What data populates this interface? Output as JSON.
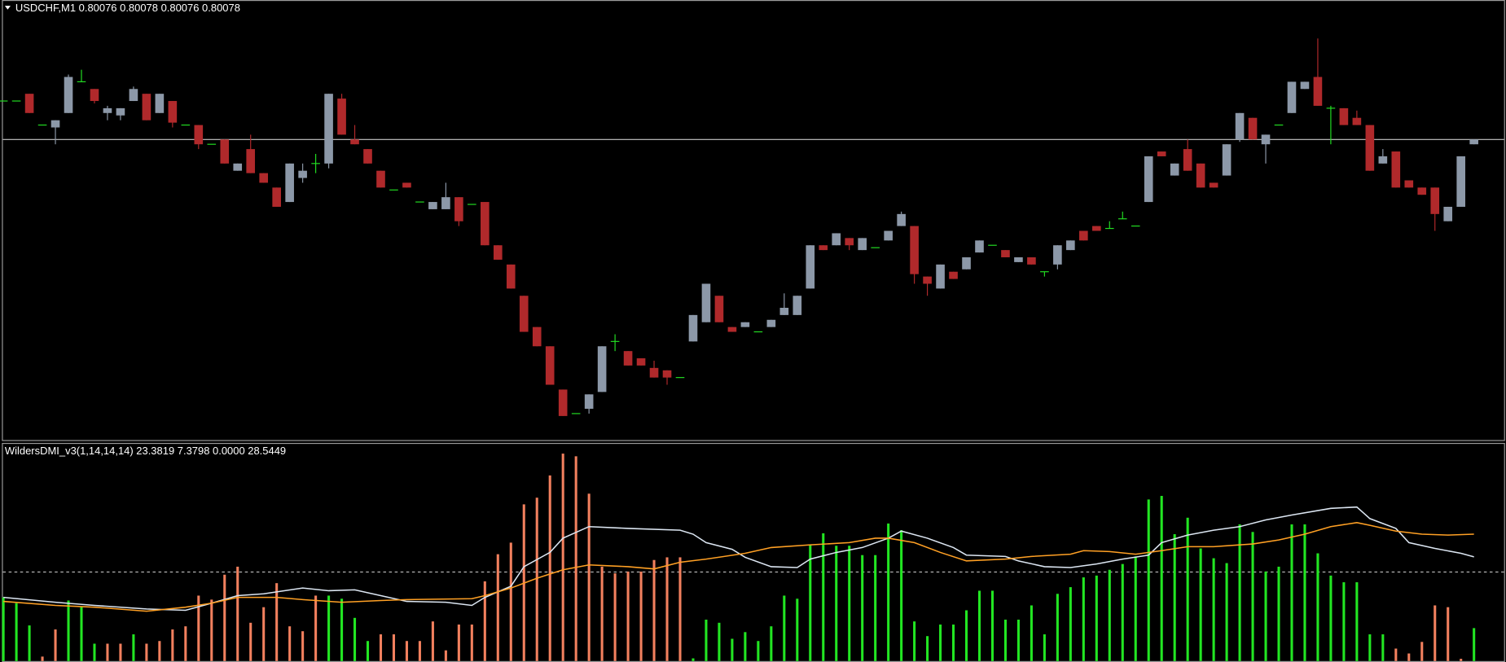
{
  "chart_data": [
    {
      "type": "candlestick",
      "title": "USDCHF,M1  0.80076 0.80078 0.80076 0.80078",
      "ylim": [
        0.79953,
        0.80136
      ],
      "price_line": 0.80078,
      "up_color": "#8c98a8",
      "down_color": "#b0292b",
      "doji_color": "#22dd22",
      "line_color": "#c8c8c8",
      "open": [
        0.80094,
        0.80094,
        0.80097,
        0.80084,
        0.80083,
        0.80089,
        0.80102,
        0.80099,
        0.80089,
        0.80088,
        0.80094,
        0.80097,
        0.80089,
        0.80094,
        0.80084,
        0.80084,
        0.80076,
        0.80078,
        0.80065,
        0.80074,
        0.80064,
        0.80058,
        0.80052,
        0.80062,
        0.80068,
        0.80068,
        0.80095,
        0.80078,
        0.80074,
        0.80065,
        0.80057,
        0.8006,
        0.80052,
        0.80049,
        0.80049,
        0.80054,
        0.80051,
        0.80052,
        0.80034,
        0.80026,
        0.80013,
        0.8,
        0.79992,
        0.79974,
        0.79964,
        0.79966,
        0.79973,
        0.79994,
        0.7999,
        0.79987,
        0.79983,
        0.79982,
        0.79979,
        0.79994,
        0.80002,
        0.80013,
        0.8,
        0.8,
        0.79998,
        0.8,
        0.80005,
        0.80005,
        0.80016,
        0.80034,
        0.80034,
        0.80037,
        0.80032,
        0.80033,
        0.80036,
        0.80042,
        0.80042,
        0.80021,
        0.80016,
        0.80023,
        0.80024,
        0.80031,
        0.80034,
        0.80032,
        0.80027,
        0.80029,
        0.80023,
        0.80026,
        0.80032,
        0.8004,
        0.80042,
        0.80041,
        0.80045,
        0.80042,
        0.80052,
        0.80073,
        0.80063,
        0.80074,
        0.80068,
        0.8006,
        0.80063,
        0.80078,
        0.80087,
        0.80076,
        0.80084,
        0.80089,
        0.80099,
        0.80104,
        0.80091,
        0.80091,
        0.80087,
        0.80084,
        0.80068,
        0.80073,
        0.80061,
        0.80058,
        0.80058,
        0.80044,
        0.8005,
        0.80076
      ],
      "high": [
        0.80094,
        0.80094,
        0.80097,
        0.80084,
        0.80086,
        0.80105,
        0.80107,
        0.80099,
        0.80092,
        0.80091,
        0.801,
        0.80097,
        0.80097,
        0.80094,
        0.80084,
        0.80084,
        0.80076,
        0.80078,
        0.80068,
        0.8008,
        0.80064,
        0.80058,
        0.80068,
        0.80068,
        0.80072,
        0.80097,
        0.80097,
        0.80084,
        0.80074,
        0.80065,
        0.80057,
        0.8006,
        0.80052,
        0.80052,
        0.8006,
        0.80054,
        0.80051,
        0.80052,
        0.80034,
        0.80026,
        0.80013,
        0.8,
        0.79992,
        0.79974,
        0.79964,
        0.79972,
        0.79992,
        0.79997,
        0.7999,
        0.79987,
        0.79986,
        0.79982,
        0.79979,
        0.80005,
        0.80018,
        0.80013,
        0.8,
        0.80002,
        0.79998,
        0.80003,
        0.80014,
        0.80013,
        0.80034,
        0.80034,
        0.80039,
        0.80037,
        0.80037,
        0.80033,
        0.8004,
        0.80048,
        0.80042,
        0.80021,
        0.80026,
        0.80023,
        0.80029,
        0.80036,
        0.80034,
        0.80032,
        0.80029,
        0.80029,
        0.80023,
        0.80034,
        0.80036,
        0.8004,
        0.80042,
        0.80044,
        0.80048,
        0.80042,
        0.80071,
        0.80073,
        0.80068,
        0.80078,
        0.80068,
        0.8006,
        0.80076,
        0.80089,
        0.80087,
        0.8008,
        0.80084,
        0.80102,
        0.80102,
        0.8012,
        0.80092,
        0.80091,
        0.8009,
        0.80084,
        0.80074,
        0.80073,
        0.80061,
        0.80058,
        0.80058,
        0.8005,
        0.80071,
        0.80078
      ],
      "low": [
        0.80094,
        0.80094,
        0.80089,
        0.80084,
        0.80076,
        0.80089,
        0.80102,
        0.80093,
        0.80086,
        0.80086,
        0.80094,
        0.80086,
        0.80089,
        0.80083,
        0.80084,
        0.80074,
        0.80076,
        0.80068,
        0.80065,
        0.80064,
        0.8006,
        0.8005,
        0.80052,
        0.8006,
        0.80064,
        0.80066,
        0.8008,
        0.80076,
        0.80068,
        0.80058,
        0.80057,
        0.80058,
        0.80052,
        0.80049,
        0.80049,
        0.80042,
        0.80051,
        0.80034,
        0.80028,
        0.80016,
        0.79998,
        0.79992,
        0.79976,
        0.79963,
        0.79964,
        0.79964,
        0.79973,
        0.7999,
        0.79984,
        0.79984,
        0.79979,
        0.79976,
        0.79979,
        0.79994,
        0.80002,
        0.80002,
        0.79998,
        0.8,
        0.79998,
        0.8,
        0.80005,
        0.80005,
        0.80016,
        0.80032,
        0.80034,
        0.80032,
        0.80032,
        0.80033,
        0.80036,
        0.80042,
        0.80018,
        0.80013,
        0.80016,
        0.8002,
        0.80024,
        0.80031,
        0.80034,
        0.80029,
        0.80027,
        0.80026,
        0.80021,
        0.80024,
        0.80032,
        0.80036,
        0.8004,
        0.80041,
        0.80045,
        0.80042,
        0.80052,
        0.80071,
        0.80063,
        0.80065,
        0.80058,
        0.80058,
        0.80063,
        0.80077,
        0.80078,
        0.80068,
        0.80084,
        0.80089,
        0.80099,
        0.80092,
        0.80076,
        0.80084,
        0.80084,
        0.80065,
        0.80068,
        0.80058,
        0.80058,
        0.80055,
        0.8004,
        0.80044,
        0.8005,
        0.80076
      ],
      "close": [
        0.80094,
        0.80094,
        0.80089,
        0.80084,
        0.80086,
        0.80104,
        0.80102,
        0.80094,
        0.80091,
        0.80091,
        0.80099,
        0.80086,
        0.80097,
        0.80085,
        0.80084,
        0.80076,
        0.80076,
        0.80068,
        0.80068,
        0.80064,
        0.8006,
        0.8005,
        0.80068,
        0.80065,
        0.80068,
        0.80097,
        0.8008,
        0.80076,
        0.80068,
        0.80058,
        0.80057,
        0.80058,
        0.80052,
        0.80052,
        0.80054,
        0.80044,
        0.80051,
        0.80034,
        0.80028,
        0.80016,
        0.79998,
        0.79992,
        0.79976,
        0.79963,
        0.79964,
        0.79972,
        0.79992,
        0.79994,
        0.79984,
        0.79984,
        0.79979,
        0.79979,
        0.79979,
        0.80005,
        0.80018,
        0.80002,
        0.79998,
        0.80002,
        0.79998,
        0.80003,
        0.80008,
        0.80013,
        0.80034,
        0.80032,
        0.80039,
        0.80034,
        0.80037,
        0.80033,
        0.8004,
        0.80047,
        0.80022,
        0.80018,
        0.80026,
        0.8002,
        0.80029,
        0.80036,
        0.80034,
        0.80029,
        0.80029,
        0.80026,
        0.80023,
        0.80034,
        0.80036,
        0.80036,
        0.8004,
        0.80041,
        0.80045,
        0.80042,
        0.80071,
        0.80071,
        0.80068,
        0.80065,
        0.80058,
        0.80058,
        0.80076,
        0.80089,
        0.80078,
        0.8008,
        0.80084,
        0.80102,
        0.80102,
        0.80092,
        0.80091,
        0.80084,
        0.80084,
        0.80065,
        0.80071,
        0.80058,
        0.80058,
        0.80055,
        0.80047,
        0.8005,
        0.80071,
        0.80078
      ]
    },
    {
      "type": "combo",
      "title": "WildersDMI_v3(1,14,14,14) 23.3819 7.3798 0.0000 28.5449",
      "ylim": [
        0,
        49
      ],
      "hlines": [
        20
      ],
      "hline_color": "#b4b4b4",
      "series": [
        {
          "type": "bar",
          "color": "#22e622",
          "values": [
            14.3,
            13,
            8,
            null,
            null,
            13.6,
            12.3,
            3.9,
            null,
            null,
            6,
            null,
            null,
            null,
            null,
            null,
            null,
            null,
            null,
            null,
            null,
            null,
            null,
            null,
            null,
            14.7,
            14,
            9.7,
            4.5,
            null,
            null,
            null,
            null,
            null,
            null,
            null,
            null,
            null,
            null,
            null,
            null,
            null,
            null,
            null,
            null,
            null,
            null,
            null,
            null,
            null,
            null,
            null,
            null,
            0.6,
            9.3,
            8.6,
            5,
            6.5,
            4.5,
            7.8,
            14.7,
            14,
            26.1,
            28.7,
            25.9,
            25.9,
            23.8,
            23.8,
            30.9,
            29.4,
            8.9,
            5.6,
            8.2,
            8.2,
            11.4,
            15.8,
            15.8,
            9.3,
            9.3,
            12.5,
            6,
            15.1,
            16.6,
            18.8,
            19.2,
            20.5,
            21.8,
            23.5,
            36.3,
            37.1,
            28.5,
            32.2,
            25.3,
            23.1,
            22,
            30.7,
            29,
            20.1,
            21.2,
            30.7,
            30.7,
            24.2,
            19.2,
            17.7,
            17.7,
            6,
            6,
            null,
            null,
            null,
            null,
            null,
            null,
            7.4
          ]
        },
        {
          "type": "bar",
          "color": "#f2805e",
          "values": [
            null,
            null,
            null,
            1,
            7.1,
            null,
            null,
            null,
            3.9,
            3.9,
            null,
            3.9,
            4.5,
            7.1,
            7.8,
            14.7,
            13.8,
            19.4,
            21.2,
            8.6,
            12.1,
            17.5,
            7.8,
            6.7,
            14.7,
            null,
            null,
            null,
            null,
            6,
            6,
            4.5,
            4.5,
            8.9,
            2.4,
            8.2,
            8.2,
            17.9,
            24,
            26.6,
            35.2,
            36.7,
            41.7,
            46.6,
            46,
            37.6,
            21.2,
            19.7,
            20.1,
            20.1,
            22.7,
            23.3,
            23.3,
            null,
            null,
            null,
            null,
            null,
            null,
            null,
            null,
            null,
            null,
            null,
            null,
            null,
            null,
            null,
            null,
            null,
            null,
            null,
            null,
            null,
            null,
            null,
            null,
            null,
            null,
            null,
            null,
            null,
            null,
            null,
            null,
            null,
            null,
            null,
            null,
            null,
            null,
            null,
            null,
            null,
            null,
            null,
            null,
            null,
            null,
            null,
            null,
            null,
            null,
            null,
            null,
            null,
            null,
            2.8,
            1.7,
            4.3,
            12.5,
            12.1,
            0.5,
            null
          ]
        },
        {
          "type": "line",
          "color": "#dce6f2",
          "x": [
            0,
            4,
            7,
            11,
            14,
            16,
            18,
            20,
            23,
            25,
            27,
            29,
            31,
            34,
            36,
            37,
            39,
            40,
            42,
            43,
            45,
            48,
            52,
            53,
            54,
            56,
            57,
            59,
            61,
            62,
            64,
            66,
            68,
            69,
            71,
            73,
            74,
            77,
            78,
            80,
            82,
            84,
            86,
            88,
            89,
            91,
            93,
            95,
            97,
            99,
            102,
            104,
            105,
            107,
            108,
            110,
            112,
            113
          ],
          "values": [
            14.3,
            13.2,
            12.5,
            11.7,
            11.4,
            13.0,
            14.7,
            15.1,
            16.4,
            15.8,
            16.0,
            14.7,
            13.4,
            13.2,
            12.5,
            14.3,
            16.8,
            21.2,
            24.4,
            27.6,
            30.2,
            29.8,
            29.4,
            28.5,
            26.6,
            25.1,
            23.3,
            21.2,
            21.0,
            22.9,
            24.4,
            25.5,
            27.6,
            29.2,
            27.6,
            25.5,
            23.8,
            23.5,
            22.5,
            21.2,
            21.0,
            21.8,
            22.9,
            23.8,
            26.6,
            28.3,
            29.4,
            30.2,
            31.7,
            32.8,
            34.3,
            34.6,
            32.0,
            29.8,
            26.6,
            25.3,
            24.2,
            23.4
          ]
        },
        {
          "type": "line",
          "color": "#ffa024",
          "x": [
            0,
            4,
            7,
            11,
            14,
            16,
            18,
            21,
            23,
            26,
            29,
            31,
            36,
            37,
            39,
            41,
            43,
            45,
            48,
            50,
            52,
            54,
            57,
            59,
            62,
            65,
            67,
            68,
            70,
            72,
            74,
            77,
            79,
            82,
            83,
            85,
            87,
            89,
            91,
            93,
            96,
            98,
            100,
            102,
            104,
            105,
            107,
            109,
            111,
            113
          ],
          "values": [
            13.4,
            12.5,
            12.1,
            11.2,
            12.1,
            13.0,
            14.3,
            14.3,
            13.8,
            13.2,
            13.6,
            13.8,
            14.0,
            14.7,
            16.4,
            18.6,
            20.5,
            21.6,
            21.2,
            20.7,
            22.2,
            22.9,
            24.2,
            25.5,
            26.1,
            26.6,
            27.6,
            27.6,
            26.6,
            24.4,
            22.5,
            22.9,
            23.5,
            24.0,
            24.8,
            24.6,
            24.0,
            24.8,
            25.7,
            25.7,
            26.3,
            27.2,
            28.5,
            30.2,
            31.1,
            30.5,
            29.2,
            28.5,
            28.3,
            28.5
          ]
        }
      ]
    }
  ]
}
